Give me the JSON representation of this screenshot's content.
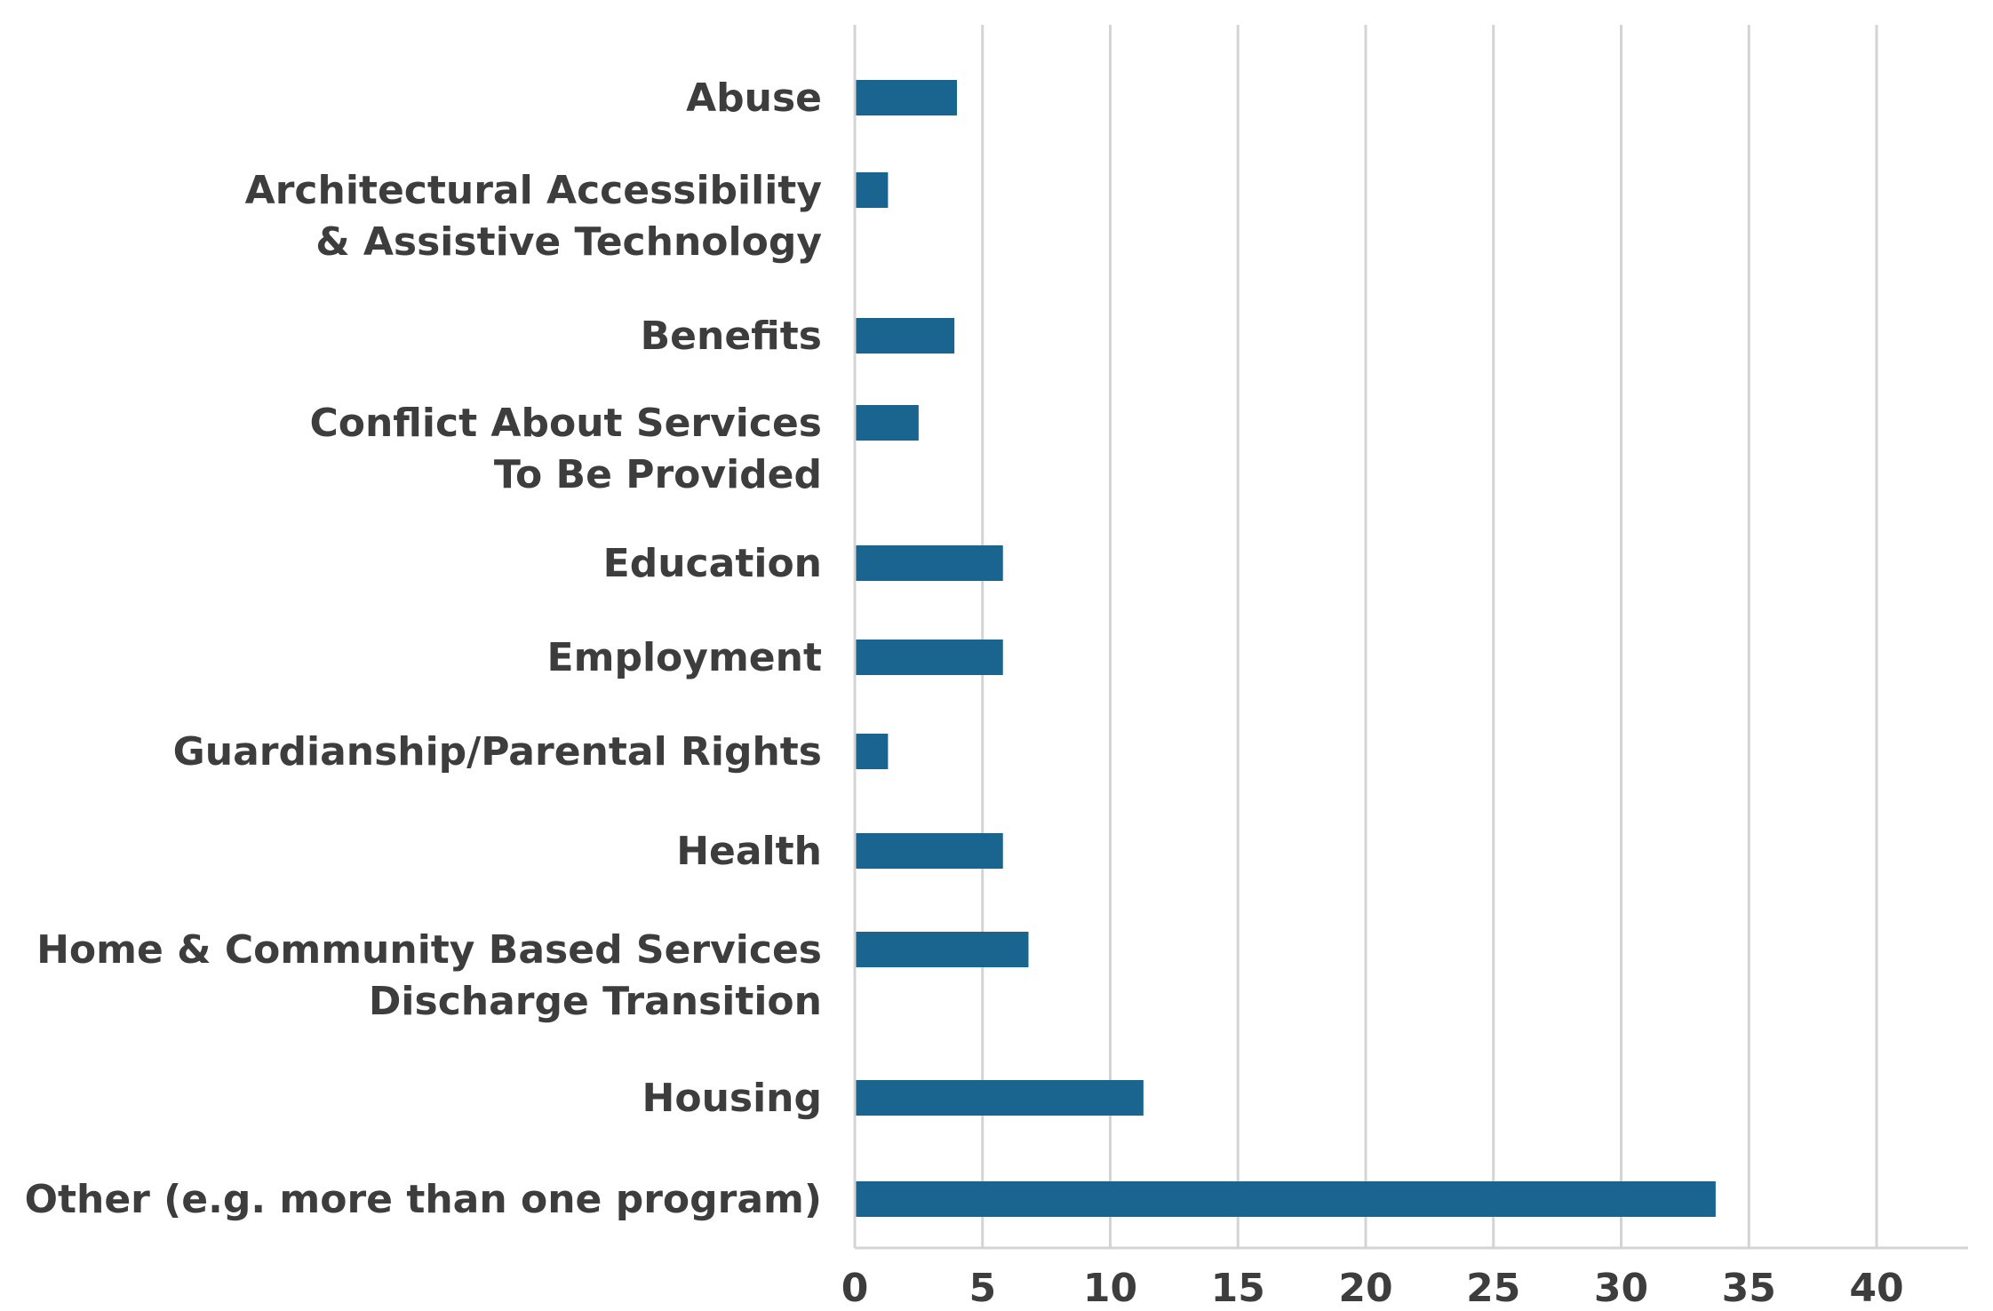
{
  "chart_data": {
    "type": "bar",
    "orientation": "horizontal",
    "categories": [
      [
        "Abuse"
      ],
      [
        "Architectural Accessibility",
        "& Assistive Technology"
      ],
      [
        "Benefits"
      ],
      [
        "Conflict About Services",
        "To Be Provided"
      ],
      [
        "Education"
      ],
      [
        "Employment"
      ],
      [
        "Guardianship/Parental Rights"
      ],
      [
        "Health"
      ],
      [
        "Home & Community Based Services",
        "Discharge Transition"
      ],
      [
        "Housing"
      ],
      [
        "Other (e.g. more than one program)"
      ]
    ],
    "values": [
      4,
      1.3,
      3.9,
      2.5,
      5.8,
      5.8,
      1.3,
      5.8,
      6.8,
      11.3,
      33.7
    ],
    "xlim": [
      0,
      42
    ],
    "xticks": [
      0,
      5,
      10,
      15,
      20,
      25,
      30,
      35,
      40
    ],
    "grid": true,
    "bar_color": "#1a6490"
  }
}
